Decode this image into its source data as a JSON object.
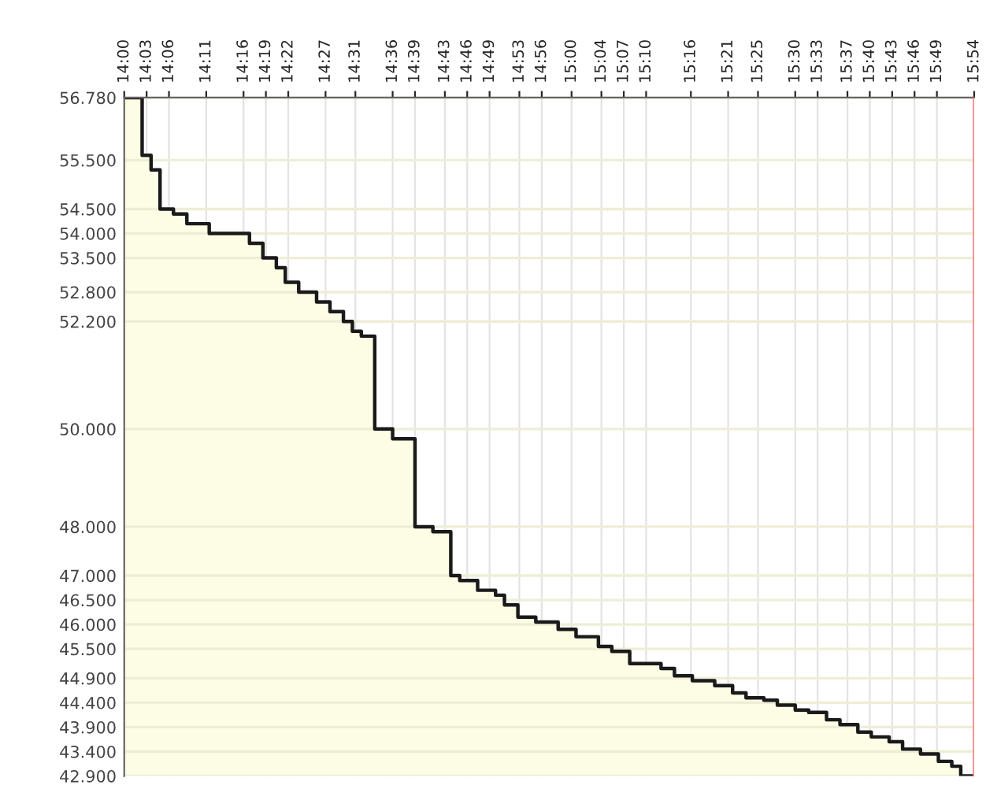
{
  "chart_data": {
    "type": "step",
    "grid": true,
    "marker": "none",
    "line_style": "solid",
    "xlim": [
      14,
      15.9
    ],
    "ylim": [
      42.9,
      56.78
    ],
    "xticks": [
      {
        "value": 14,
        "label": "14:00"
      },
      {
        "value": 14.05,
        "label": "14:03"
      },
      {
        "value": 14.1,
        "label": "14:06"
      },
      {
        "value": 14.1833,
        "label": "14:11"
      },
      {
        "value": 14.2667,
        "label": "14:16"
      },
      {
        "value": 14.3167,
        "label": "14:19"
      },
      {
        "value": 14.3667,
        "label": "14:22"
      },
      {
        "value": 14.45,
        "label": "14:27"
      },
      {
        "value": 14.5167,
        "label": "14:31"
      },
      {
        "value": 14.6,
        "label": "14:36"
      },
      {
        "value": 14.65,
        "label": "14:39"
      },
      {
        "value": 14.7167,
        "label": "14:43"
      },
      {
        "value": 14.7667,
        "label": "14:46"
      },
      {
        "value": 14.8167,
        "label": "14:49"
      },
      {
        "value": 14.8833,
        "label": "14:53"
      },
      {
        "value": 14.9333,
        "label": "14:56"
      },
      {
        "value": 15,
        "label": "15:00"
      },
      {
        "value": 15.0667,
        "label": "15:04"
      },
      {
        "value": 15.1167,
        "label": "15:07"
      },
      {
        "value": 15.1667,
        "label": "15:10"
      },
      {
        "value": 15.2667,
        "label": "15:16"
      },
      {
        "value": 15.35,
        "label": "15:21"
      },
      {
        "value": 15.4167,
        "label": "15:25"
      },
      {
        "value": 15.5,
        "label": "15:30"
      },
      {
        "value": 15.55,
        "label": "15:33"
      },
      {
        "value": 15.6167,
        "label": "15:37"
      },
      {
        "value": 15.6667,
        "label": "15:40"
      },
      {
        "value": 15.7167,
        "label": "15:43"
      },
      {
        "value": 15.7667,
        "label": "15:46"
      },
      {
        "value": 15.8167,
        "label": "15:49"
      },
      {
        "value": 15.9,
        "label": "15:54"
      }
    ],
    "yticks": [
      {
        "value": 56.78,
        "label": "56.780"
      },
      {
        "value": 55.5,
        "label": "55.500"
      },
      {
        "value": 54.5,
        "label": "54.500"
      },
      {
        "value": 54,
        "label": "54.000"
      },
      {
        "value": 53.5,
        "label": "53.500"
      },
      {
        "value": 52.8,
        "label": "52.800"
      },
      {
        "value": 52.2,
        "label": "52.200"
      },
      {
        "value": 50,
        "label": "50.000"
      },
      {
        "value": 48,
        "label": "48.000"
      },
      {
        "value": 47,
        "label": "47.000"
      },
      {
        "value": 46.5,
        "label": "46.500"
      },
      {
        "value": 46,
        "label": "46.000"
      },
      {
        "value": 45.5,
        "label": "45.500"
      },
      {
        "value": 44.9,
        "label": "44.900"
      },
      {
        "value": 44.4,
        "label": "44.400"
      },
      {
        "value": 43.9,
        "label": "43.900"
      },
      {
        "value": 43.4,
        "label": "43.400"
      },
      {
        "value": 42.9,
        "label": "42.900"
      }
    ],
    "tick_labels": "xy_top_left",
    "ref_lines": [
      {
        "axis": "x",
        "value": 15.9,
        "color": "#ff8080"
      }
    ],
    "series": [
      {
        "color": "#1a1a1a",
        "x": [
          14,
          14.04,
          14.06,
          14.08,
          14.11,
          14.14,
          14.19,
          14.28,
          14.31,
          14.34,
          14.36,
          14.39,
          14.43,
          14.46,
          14.49,
          14.51,
          14.53,
          14.56,
          14.6,
          14.65,
          14.69,
          14.73,
          14.75,
          14.79,
          14.83,
          14.85,
          14.88,
          14.92,
          14.97,
          15.01,
          15.06,
          15.09,
          15.13,
          15.2,
          15.23,
          15.27,
          15.32,
          15.36,
          15.39,
          15.43,
          15.46,
          15.5,
          15.53,
          15.57,
          15.6,
          15.64,
          15.67,
          15.71,
          15.74,
          15.78,
          15.82,
          15.85,
          15.87,
          15.9
        ],
        "values": [
          56.78,
          55.6,
          55.3,
          54.5,
          54.4,
          54.2,
          54.0,
          53.8,
          53.5,
          53.3,
          53.0,
          52.8,
          52.6,
          52.4,
          52.2,
          52.0,
          51.9,
          50.0,
          49.8,
          48.0,
          47.9,
          47.0,
          46.9,
          46.7,
          46.6,
          46.4,
          46.15,
          46.05,
          45.9,
          45.75,
          45.55,
          45.45,
          45.2,
          45.1,
          44.95,
          44.85,
          44.75,
          44.6,
          44.5,
          44.45,
          44.35,
          44.25,
          44.2,
          44.05,
          43.95,
          43.8,
          43.7,
          43.6,
          43.45,
          43.35,
          43.2,
          43.1,
          42.9,
          42.9
        ]
      }
    ]
  }
}
